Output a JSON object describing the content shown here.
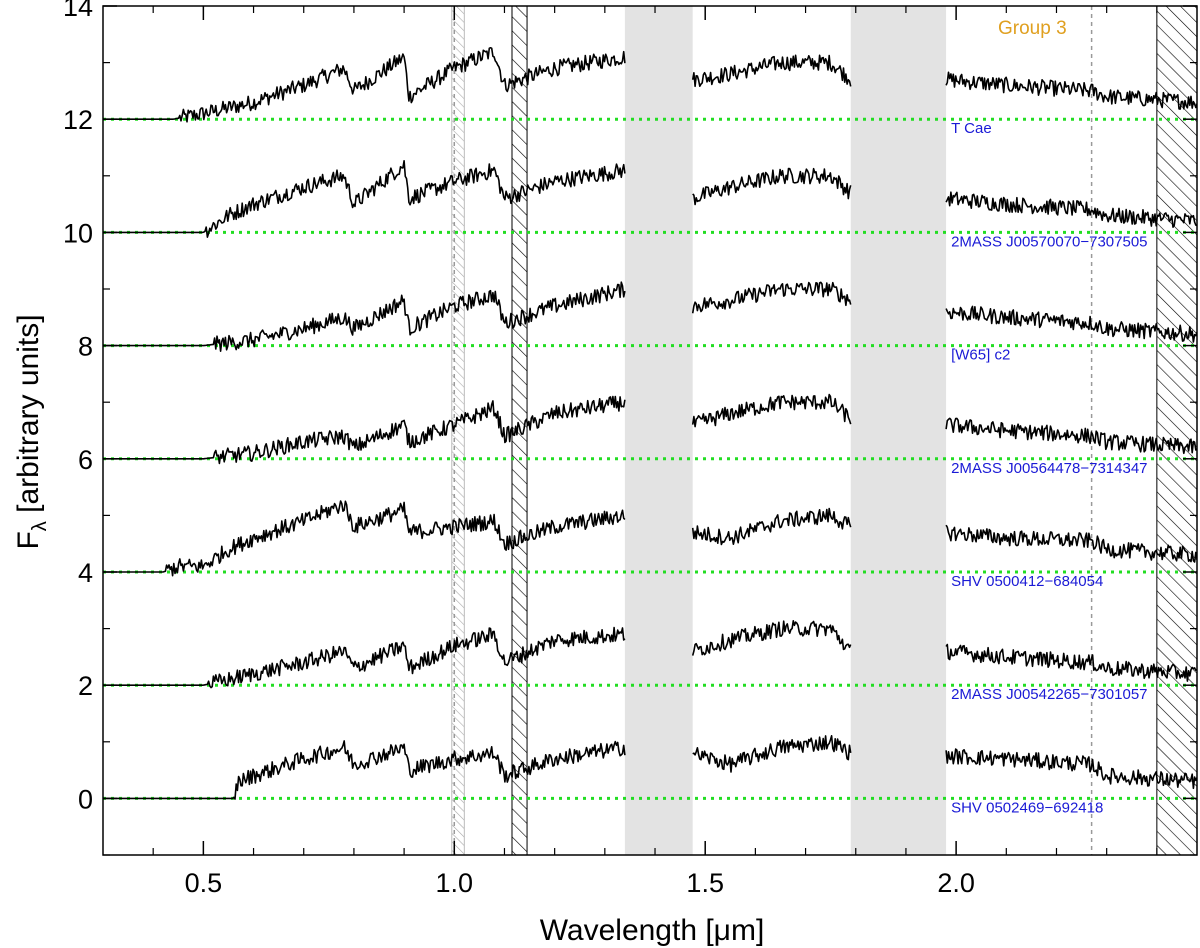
{
  "chart_data": {
    "type": "line",
    "title": "",
    "annotation": "Group 3",
    "xlabel": "Wavelength [μm]",
    "ylabel_main": "F",
    "ylabel_sub": "λ",
    "ylabel_rest": " [arbitrary units]",
    "xlim": [
      0.3,
      2.48
    ],
    "ylim": [
      -1,
      14
    ],
    "xticks": [
      {
        "value": 0.5,
        "label": "0.5"
      },
      {
        "value": 1.0,
        "label": "1.0"
      },
      {
        "value": 1.5,
        "label": "1.5"
      },
      {
        "value": 2.0,
        "label": "2.0"
      }
    ],
    "yticks": [
      {
        "value": 0,
        "label": "0"
      },
      {
        "value": 2,
        "label": "2"
      },
      {
        "value": 4,
        "label": "4"
      },
      {
        "value": 6,
        "label": "6"
      },
      {
        "value": 8,
        "label": "8"
      },
      {
        "value": 10,
        "label": "10"
      },
      {
        "value": 12,
        "label": "12"
      },
      {
        "value": 14,
        "label": "14"
      }
    ],
    "grey_bands": [
      [
        1.34,
        1.475
      ],
      [
        1.79,
        1.98
      ]
    ],
    "hatched_bands": [
      [
        0.995,
        1.02
      ],
      [
        1.115,
        1.145
      ],
      [
        2.4,
        2.48
      ]
    ],
    "dashed_lines": [
      1.0,
      2.27
    ],
    "segments": [
      [
        0.3,
        1.34
      ],
      [
        1.475,
        1.79
      ],
      [
        1.98,
        2.48
      ]
    ],
    "series": [
      {
        "name": "T Cae",
        "offset": 12,
        "color": "#000000",
        "points": [
          [
            0.3,
            12
          ],
          [
            0.44,
            12
          ],
          [
            0.5,
            12.1
          ],
          [
            0.55,
            12.2
          ],
          [
            0.6,
            12.3
          ],
          [
            0.7,
            12.6
          ],
          [
            0.78,
            12.9
          ],
          [
            0.8,
            12.5
          ],
          [
            0.9,
            13.1
          ],
          [
            0.91,
            12.4
          ],
          [
            1.0,
            12.9
          ],
          [
            1.08,
            13.2
          ],
          [
            1.1,
            12.6
          ],
          [
            1.2,
            12.9
          ],
          [
            1.34,
            13.1
          ],
          [
            1.475,
            12.7
          ],
          [
            1.55,
            12.8
          ],
          [
            1.65,
            13.0
          ],
          [
            1.75,
            13.0
          ],
          [
            1.79,
            12.7
          ],
          [
            1.98,
            12.7
          ],
          [
            2.1,
            12.6
          ],
          [
            2.27,
            12.5
          ],
          [
            2.3,
            12.4
          ],
          [
            2.48,
            12.3
          ]
        ]
      },
      {
        "name": "2MASS J00570070−7307505",
        "offset": 10,
        "color": "#000000",
        "points": [
          [
            0.3,
            10
          ],
          [
            0.5,
            10
          ],
          [
            0.55,
            10.3
          ],
          [
            0.6,
            10.5
          ],
          [
            0.7,
            10.8
          ],
          [
            0.78,
            11.0
          ],
          [
            0.8,
            10.5
          ],
          [
            0.9,
            11.2
          ],
          [
            0.91,
            10.6
          ],
          [
            1.0,
            10.9
          ],
          [
            1.08,
            11.1
          ],
          [
            1.1,
            10.6
          ],
          [
            1.2,
            10.9
          ],
          [
            1.34,
            11.1
          ],
          [
            1.475,
            10.6
          ],
          [
            1.55,
            10.8
          ],
          [
            1.65,
            11.0
          ],
          [
            1.75,
            11.0
          ],
          [
            1.79,
            10.7
          ],
          [
            1.98,
            10.6
          ],
          [
            2.1,
            10.5
          ],
          [
            2.27,
            10.4
          ],
          [
            2.3,
            10.3
          ],
          [
            2.48,
            10.2
          ]
        ]
      },
      {
        "name": "[W65] c2",
        "offset": 8,
        "color": "#000000",
        "points": [
          [
            0.3,
            8
          ],
          [
            0.5,
            8
          ],
          [
            0.6,
            8.1
          ],
          [
            0.7,
            8.3
          ],
          [
            0.78,
            8.5
          ],
          [
            0.8,
            8.3
          ],
          [
            0.9,
            8.8
          ],
          [
            0.91,
            8.3
          ],
          [
            1.0,
            8.7
          ],
          [
            1.08,
            8.9
          ],
          [
            1.1,
            8.4
          ],
          [
            1.2,
            8.7
          ],
          [
            1.34,
            9.0
          ],
          [
            1.475,
            8.7
          ],
          [
            1.55,
            8.8
          ],
          [
            1.65,
            9.0
          ],
          [
            1.75,
            9.0
          ],
          [
            1.79,
            8.8
          ],
          [
            1.98,
            8.6
          ],
          [
            2.1,
            8.5
          ],
          [
            2.27,
            8.4
          ],
          [
            2.3,
            8.3
          ],
          [
            2.48,
            8.2
          ]
        ]
      },
      {
        "name": "2MASS J00564478−7314347",
        "offset": 6,
        "color": "#000000",
        "points": [
          [
            0.3,
            6
          ],
          [
            0.5,
            6
          ],
          [
            0.6,
            6.1
          ],
          [
            0.7,
            6.3
          ],
          [
            0.78,
            6.4
          ],
          [
            0.8,
            6.2
          ],
          [
            0.9,
            6.6
          ],
          [
            0.91,
            6.3
          ],
          [
            1.0,
            6.6
          ],
          [
            1.08,
            6.9
          ],
          [
            1.1,
            6.4
          ],
          [
            1.2,
            6.8
          ],
          [
            1.34,
            7.0
          ],
          [
            1.475,
            6.6
          ],
          [
            1.55,
            6.8
          ],
          [
            1.65,
            7.0
          ],
          [
            1.75,
            7.0
          ],
          [
            1.79,
            6.7
          ],
          [
            1.98,
            6.6
          ],
          [
            2.1,
            6.5
          ],
          [
            2.27,
            6.4
          ],
          [
            2.3,
            6.3
          ],
          [
            2.48,
            6.2
          ]
        ]
      },
      {
        "name": "SHV 0500412−684054",
        "offset": 4,
        "color": "#000000",
        "points": [
          [
            0.3,
            4
          ],
          [
            0.42,
            4
          ],
          [
            0.45,
            4.1
          ],
          [
            0.5,
            4.1
          ],
          [
            0.55,
            4.4
          ],
          [
            0.6,
            4.6
          ],
          [
            0.7,
            4.9
          ],
          [
            0.78,
            5.2
          ],
          [
            0.8,
            4.8
          ],
          [
            0.9,
            5.1
          ],
          [
            0.91,
            4.7
          ],
          [
            1.0,
            4.8
          ],
          [
            1.08,
            4.9
          ],
          [
            1.1,
            4.5
          ],
          [
            1.2,
            4.8
          ],
          [
            1.34,
            5.0
          ],
          [
            1.475,
            4.7
          ],
          [
            1.55,
            4.6
          ],
          [
            1.65,
            4.9
          ],
          [
            1.75,
            5.0
          ],
          [
            1.79,
            4.8
          ],
          [
            1.98,
            4.7
          ],
          [
            2.1,
            4.6
          ],
          [
            2.27,
            4.55
          ],
          [
            2.3,
            4.4
          ],
          [
            2.48,
            4.3
          ]
        ]
      },
      {
        "name": "2MASS J00542265−7301057",
        "offset": 2,
        "color": "#000000",
        "points": [
          [
            0.3,
            2
          ],
          [
            0.5,
            2
          ],
          [
            0.6,
            2.2
          ],
          [
            0.7,
            2.4
          ],
          [
            0.78,
            2.6
          ],
          [
            0.8,
            2.3
          ],
          [
            0.9,
            2.7
          ],
          [
            0.91,
            2.3
          ],
          [
            1.0,
            2.7
          ],
          [
            1.08,
            2.9
          ],
          [
            1.1,
            2.4
          ],
          [
            1.2,
            2.8
          ],
          [
            1.34,
            2.9
          ],
          [
            1.475,
            2.6
          ],
          [
            1.55,
            2.8
          ],
          [
            1.65,
            3.0
          ],
          [
            1.75,
            3.0
          ],
          [
            1.79,
            2.6
          ],
          [
            1.98,
            2.6
          ],
          [
            2.1,
            2.5
          ],
          [
            2.27,
            2.4
          ],
          [
            2.3,
            2.3
          ],
          [
            2.48,
            2.2
          ]
        ]
      },
      {
        "name": "SHV 0502469−692418",
        "offset": 0,
        "color": "#000000",
        "points": [
          [
            0.3,
            0
          ],
          [
            0.56,
            0
          ],
          [
            0.57,
            0.3
          ],
          [
            0.6,
            0.4
          ],
          [
            0.7,
            0.7
          ],
          [
            0.78,
            0.9
          ],
          [
            0.8,
            0.6
          ],
          [
            0.9,
            0.9
          ],
          [
            0.91,
            0.5
          ],
          [
            1.0,
            0.7
          ],
          [
            1.08,
            0.8
          ],
          [
            1.1,
            0.4
          ],
          [
            1.2,
            0.7
          ],
          [
            1.34,
            0.9
          ],
          [
            1.475,
            0.8
          ],
          [
            1.55,
            0.6
          ],
          [
            1.65,
            0.9
          ],
          [
            1.75,
            1.0
          ],
          [
            1.79,
            0.8
          ],
          [
            1.98,
            0.75
          ],
          [
            2.1,
            0.7
          ],
          [
            2.27,
            0.6
          ],
          [
            2.3,
            0.4
          ],
          [
            2.48,
            0.3
          ]
        ]
      }
    ],
    "baseline_color": "#22dd22",
    "label_color": "#1a1ad6",
    "annotation_color": "#e0a020",
    "grey_band_color": "#e3e3e3"
  }
}
